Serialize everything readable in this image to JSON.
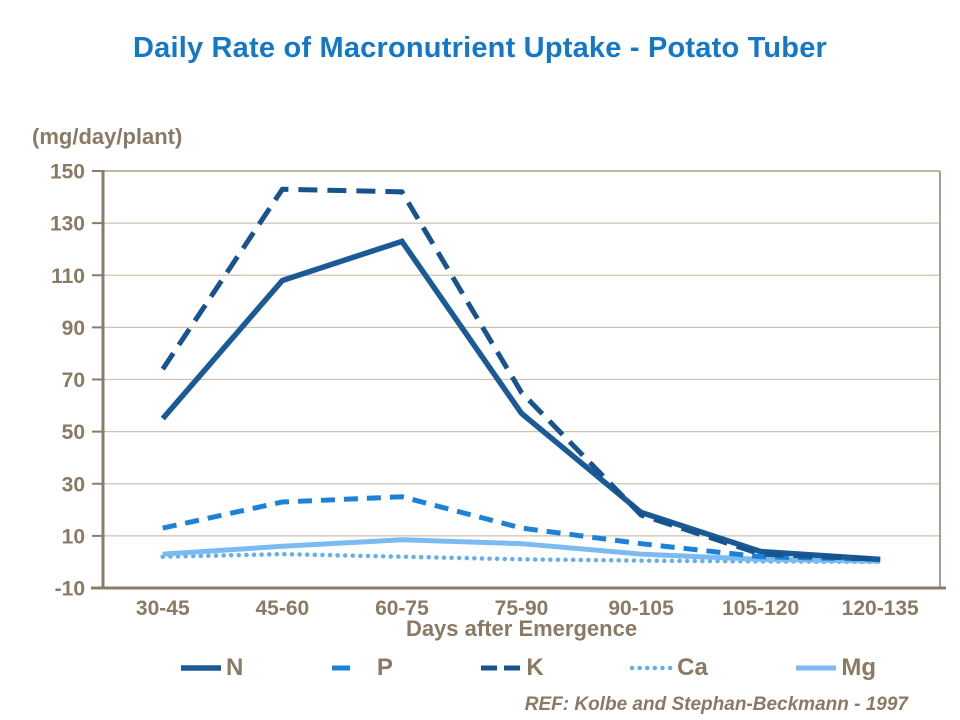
{
  "title": "Daily Rate of Macronutrient Uptake - Potato Tuber",
  "y_axis": {
    "unit": "(mg/day/plant)",
    "ticks": [
      150,
      130,
      110,
      90,
      70,
      50,
      30,
      10,
      -10
    ]
  },
  "x_axis": {
    "title": "Days after Emergence"
  },
  "footer": {
    "ref": "REF: Kolbe and Stephan-Beckmann - 1997"
  },
  "colors": {
    "title_blue": "#1478C8",
    "text_brown": "#8A7A64",
    "axis_brown": "#8A7C6A",
    "gridline": "#CCC2B2",
    "plot_border": "#AC9F8B"
  },
  "chart_data": {
    "type": "line",
    "title": "Daily Rate of Macronutrient Uptake - Potato Tuber",
    "categories": [
      "30-45",
      "45-60",
      "60-75",
      "75-90",
      "90-105",
      "105-120",
      "120-135"
    ],
    "series": [
      {
        "name": "N",
        "style": "solid",
        "color": "#1A5A96",
        "width": 5.5,
        "dash": "",
        "values": [
          55,
          108,
          123,
          57,
          19,
          4,
          1
        ]
      },
      {
        "name": "P",
        "style": "dashed",
        "color": "#1C82D9",
        "width": 5,
        "dash": "14 9",
        "legend_dash": "18 40",
        "values": [
          13,
          23,
          25,
          13,
          7,
          2,
          1
        ]
      },
      {
        "name": "K",
        "style": "dashed",
        "color": "#17538C",
        "width": 5,
        "dash": "19 10",
        "legend_dash": "16 7",
        "values": [
          74,
          143,
          142,
          65,
          18,
          3,
          1
        ]
      },
      {
        "name": "Ca",
        "style": "dotted",
        "color": "#65AFEA",
        "width": 4.5,
        "dash": "0.1 7.5",
        "values": [
          2,
          3,
          2,
          1,
          0.5,
          0.2,
          0
        ]
      },
      {
        "name": "Mg",
        "style": "solid",
        "color": "#7CBAF2",
        "width": 5,
        "dash": "",
        "values": [
          3,
          6,
          8.5,
          7,
          3,
          1,
          0.3
        ]
      }
    ],
    "xlabel": "Days after Emergence",
    "ylabel": "(mg/day/plant)",
    "ylim": [
      -10,
      150
    ],
    "ytick_step": 20,
    "grid": true,
    "legend_position": "bottom"
  }
}
